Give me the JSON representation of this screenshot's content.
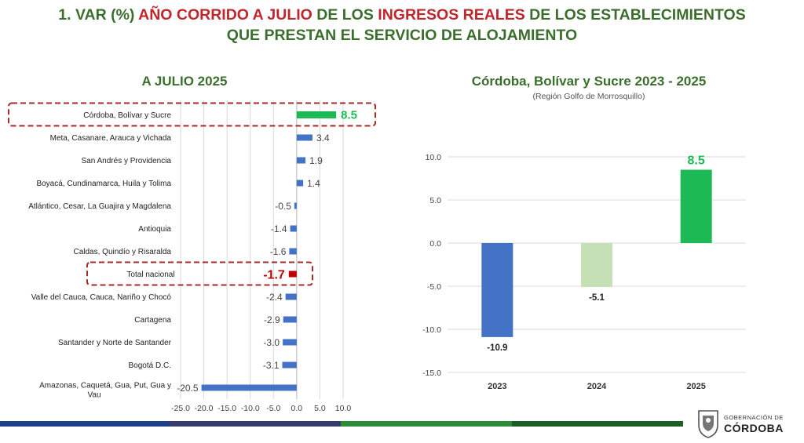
{
  "title": {
    "part1": "1. VAR (%) ",
    "part2": "AÑO CORRIDO A JULIO",
    "part3": " DE LOS ",
    "part4": "INGRESOS REALES",
    "part5": " DE LOS ESTABLECIMIENTOS",
    "line2": "QUE PRESTAN EL SERVICIO DE ALOJAMIENTO"
  },
  "footer": {
    "logo_small": "GOBERNACIÓN DE",
    "logo_big": "CÓRDOBA"
  },
  "colors": {
    "title_green": "#3b6e2c",
    "title_red": "#c0262b",
    "bar_blue": "#4472c4",
    "highlight_green": "#1db954",
    "national_red": "#c00000",
    "bar_2024": "#c5e0b4",
    "dashed_box": "#a52a2a",
    "footer_colors": [
      "#1f3f8a",
      "#343d6c",
      "#2e8b3a",
      "#1d5e27"
    ]
  },
  "chart_data": [
    {
      "type": "bar",
      "orientation": "horizontal",
      "title": "A JULIO 2025",
      "categories": [
        "Córdoba, Bolívar y Sucre",
        "Meta, Casanare, Arauca y Vichada",
        "San Andrés y Providencia",
        "Boyacá, Cundinamarca, Huila y Tolima",
        "Atlántico, Cesar, La Guajira y Magdalena",
        "Antioquia",
        "Caldas, Quindío y Risaralda",
        "Total nacional",
        "Valle del Cauca, Cauca, Nariño y Chocó",
        "Cartagena",
        "Santander y Norte de Santander",
        "Bogotá D.C.",
        "Amazonas, Caquetá, Gua, Put, Gua y Vau"
      ],
      "values": [
        8.5,
        3.4,
        1.9,
        1.4,
        -0.5,
        -1.4,
        -1.6,
        -1.7,
        -2.4,
        -2.9,
        -3.0,
        -3.1,
        -20.5
      ],
      "value_labels": [
        "8.5",
        "3.4",
        "1.9",
        "1.4",
        "-0.5",
        "-1.4",
        "-1.6",
        "-1.7",
        "-2.4",
        "-2.9",
        "-3.0",
        "-3.1",
        "-20.5"
      ],
      "highlighted": [
        "Córdoba, Bolívar y Sucre",
        "Total nacional"
      ],
      "xlim": [
        -25,
        10
      ],
      "xticks": [
        "-25.0",
        "-20.0",
        "-15.0",
        "-10.0",
        "-5.0",
        "0.0",
        "5.0",
        "10.0"
      ],
      "grid": true
    },
    {
      "type": "bar",
      "title": "Córdoba, Bolívar y Sucre 2023 - 2025",
      "subtitle": "(Región Golfo de Morrosquillo)",
      "categories": [
        "2023",
        "2024",
        "2025"
      ],
      "values": [
        -10.9,
        -5.1,
        8.5
      ],
      "value_labels": [
        "-10.9",
        "-5.1",
        "8.5"
      ],
      "ylim": [
        -15,
        10
      ],
      "yticks": [
        "10.0",
        "5.0",
        "0.0",
        "-5.0",
        "-10.0",
        "-15.0"
      ],
      "grid": true
    }
  ]
}
